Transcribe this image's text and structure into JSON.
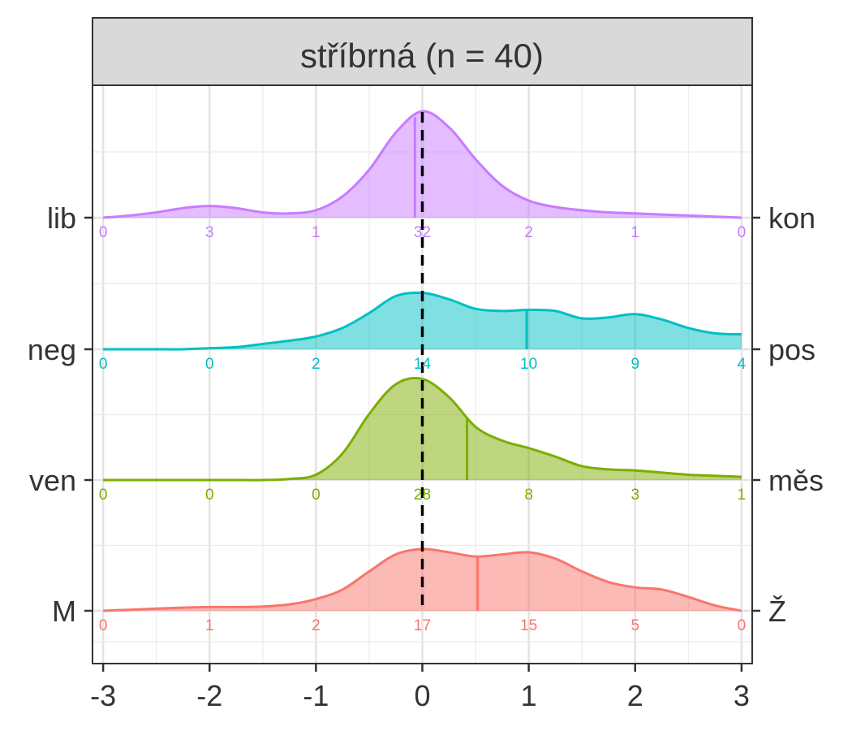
{
  "chart_data": {
    "type": "ridgeline-density",
    "title": "stříbrná (n = 40)",
    "xlabel": "",
    "ylabel": "",
    "xlim": [
      -3.1,
      3.1
    ],
    "x_ticks": [
      -3,
      -2,
      -1,
      0,
      1,
      2,
      3
    ],
    "x_tick_labels": [
      "-3",
      "-2",
      "-1",
      "0",
      "1",
      "2",
      "3"
    ],
    "reference_line_x": 0,
    "grid": true,
    "legend": "none",
    "rows": [
      {
        "left_label": "lib",
        "right_label": "kon",
        "color": "#C77CFF",
        "marker_x": -0.07,
        "counts": [
          "0",
          "3",
          "1",
          "32",
          "2",
          "1",
          "0"
        ],
        "density": {
          "x": [
            -3,
            -2.75,
            -2.5,
            -2.25,
            -2,
            -1.75,
            -1.5,
            -1.25,
            -1,
            -0.75,
            -0.5,
            -0.25,
            0,
            0.25,
            0.5,
            0.75,
            1,
            1.25,
            1.5,
            1.75,
            2,
            2.25,
            2.5,
            2.75,
            3
          ],
          "y": [
            0.0,
            0.02,
            0.05,
            0.09,
            0.11,
            0.09,
            0.05,
            0.04,
            0.07,
            0.2,
            0.45,
            0.8,
            1.0,
            0.85,
            0.55,
            0.3,
            0.16,
            0.1,
            0.07,
            0.05,
            0.04,
            0.03,
            0.02,
            0.01,
            0.0
          ]
        }
      },
      {
        "left_label": "neg",
        "right_label": "pos",
        "color": "#00BFC4",
        "marker_x": 0.98,
        "counts": [
          "0",
          "0",
          "2",
          "14",
          "10",
          "9",
          "4"
        ],
        "density": {
          "x": [
            -3,
            -2.75,
            -2.5,
            -2.25,
            -2,
            -1.75,
            -1.5,
            -1.25,
            -1,
            -0.75,
            -0.5,
            -0.25,
            0,
            0.25,
            0.5,
            0.75,
            1,
            1.25,
            1.5,
            1.75,
            2,
            2.25,
            2.5,
            2.75,
            3
          ],
          "y": [
            0.0,
            0.0,
            0.0,
            0.0,
            0.01,
            0.02,
            0.05,
            0.08,
            0.12,
            0.2,
            0.34,
            0.5,
            0.53,
            0.47,
            0.38,
            0.36,
            0.37,
            0.36,
            0.29,
            0.3,
            0.33,
            0.28,
            0.2,
            0.15,
            0.14
          ]
        }
      },
      {
        "left_label": "ven",
        "right_label": "měs",
        "color": "#7CAE00",
        "marker_x": 0.42,
        "counts": [
          "0",
          "0",
          "0",
          "28",
          "8",
          "3",
          "1"
        ],
        "density": {
          "x": [
            -3,
            -2.75,
            -2.5,
            -2.25,
            -2,
            -1.75,
            -1.5,
            -1.25,
            -1,
            -0.75,
            -0.5,
            -0.25,
            0,
            0.25,
            0.5,
            0.75,
            1,
            1.25,
            1.5,
            1.75,
            2,
            2.25,
            2.5,
            2.75,
            3
          ],
          "y": [
            0.0,
            0.0,
            0.0,
            0.0,
            0.0,
            0.0,
            0.0,
            0.01,
            0.05,
            0.25,
            0.62,
            0.9,
            0.95,
            0.78,
            0.5,
            0.37,
            0.3,
            0.22,
            0.13,
            0.1,
            0.09,
            0.07,
            0.05,
            0.04,
            0.03
          ]
        }
      },
      {
        "left_label": "M",
        "right_label": "Ž",
        "color": "#F8766D",
        "marker_x": 0.52,
        "counts": [
          "0",
          "1",
          "2",
          "17",
          "15",
          "5",
          "0"
        ],
        "density": {
          "x": [
            -3,
            -2.75,
            -2.5,
            -2.25,
            -2,
            -1.75,
            -1.5,
            -1.25,
            -1,
            -0.75,
            -0.5,
            -0.25,
            0,
            0.25,
            0.5,
            0.75,
            1,
            1.25,
            1.5,
            1.75,
            2,
            2.25,
            2.5,
            2.75,
            3
          ],
          "y": [
            0.0,
            0.01,
            0.02,
            0.03,
            0.035,
            0.035,
            0.04,
            0.06,
            0.11,
            0.2,
            0.37,
            0.53,
            0.58,
            0.55,
            0.51,
            0.53,
            0.55,
            0.49,
            0.37,
            0.27,
            0.22,
            0.2,
            0.13,
            0.05,
            0.0
          ]
        }
      }
    ]
  }
}
